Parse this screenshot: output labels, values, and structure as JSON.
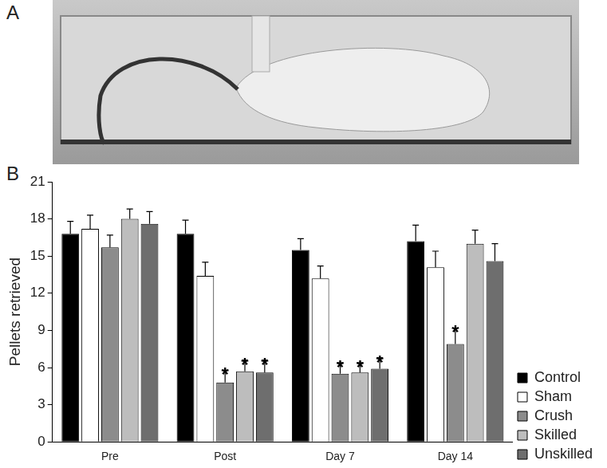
{
  "panel_labels": [
    "A",
    "B"
  ],
  "chart_data": {
    "type": "bar",
    "y_label": "Pellets retrieved",
    "categories": [
      "Pre",
      "Post",
      "Day 7",
      "Day 14"
    ],
    "ylim": [
      0,
      21
    ],
    "yticks": [
      0,
      3,
      6,
      9,
      12,
      15,
      18,
      21
    ],
    "grid": false,
    "legend": "right",
    "series": [
      {
        "name": "Control",
        "color": "#000000",
        "values": [
          16.8,
          16.8,
          15.5,
          16.2
        ],
        "errors": [
          1.0,
          1.1,
          0.9,
          1.3
        ]
      },
      {
        "name": "Sham",
        "color": "#ffffff",
        "values": [
          17.2,
          13.4,
          13.2,
          14.1
        ],
        "errors": [
          1.1,
          1.1,
          1.0,
          1.3
        ]
      },
      {
        "name": "Crush",
        "color": "#8c8c8c",
        "values": [
          15.7,
          4.8,
          5.5,
          7.9
        ],
        "errors": [
          1.0,
          1.0,
          0.9,
          1.3
        ]
      },
      {
        "name": "Skilled",
        "color": "#bdbdbd",
        "values": [
          18.0,
          5.7,
          5.6,
          16.0
        ],
        "errors": [
          0.8,
          0.9,
          0.8,
          1.1
        ]
      },
      {
        "name": "Unskilled",
        "color": "#6e6e6e",
        "values": [
          17.6,
          5.6,
          5.9,
          14.6
        ],
        "errors": [
          1.0,
          1.0,
          0.9,
          1.4
        ]
      }
    ],
    "annotations": [
      {
        "text": "*",
        "series": "Crush",
        "category": "Post"
      },
      {
        "text": "*",
        "series": "Skilled",
        "category": "Post"
      },
      {
        "text": "*",
        "series": "Unskilled",
        "category": "Post"
      },
      {
        "text": "*",
        "series": "Crush",
        "category": "Day 7"
      },
      {
        "text": "*",
        "series": "Skilled",
        "category": "Day 7"
      },
      {
        "text": "*",
        "series": "Unskilled",
        "category": "Day 7"
      },
      {
        "text": "*",
        "series": "Crush",
        "category": "Day 14"
      }
    ]
  }
}
